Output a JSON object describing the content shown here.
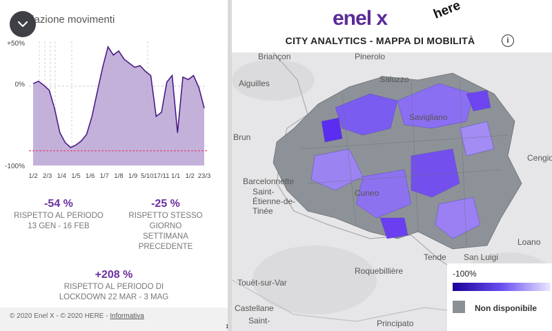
{
  "left_panel": {
    "title": "Variazione movimenti",
    "collapse_icon": "chevron-down-icon",
    "y_axis": [
      "+50%",
      "0%",
      "-100%"
    ],
    "x_axis": [
      "1/2",
      "2/3",
      "1/4",
      "1/5",
      "1/6",
      "1/7",
      "1/8",
      "1/9",
      "5/10",
      "17/11",
      "1/1",
      "1/2",
      "23/3"
    ],
    "stats": [
      {
        "value": "-54 %",
        "lines": [
          "RISPETTO AL PERIODO",
          "13 GEN - 16 FEB"
        ]
      },
      {
        "value": "-25 %",
        "lines": [
          "RISPETTO STESSO",
          "GIORNO",
          "SETTIMANA",
          "PRECEDENTE"
        ]
      },
      {
        "value": "+208 %",
        "lines": [
          "RISPETTO AL PERIODO DI",
          "LOCKDOWN 22 MAR - 3 MAG"
        ]
      }
    ],
    "footer": {
      "text": "© 2020 Enel X - © 2020 HERE - ",
      "link": "Informativa",
      "arrow": "›"
    }
  },
  "right_panel": {
    "brand": "enel x",
    "partner": "here",
    "title": "CITY ANALYTICS - MAPPA DI MOBILITÀ",
    "info_icon": "i",
    "map_labels": [
      "Briançon",
      "Pinerolo",
      "Aiguilles",
      "Barcelonnette",
      "Saluzzo",
      "Savigliano",
      "Cuneo",
      "Brun",
      "Saint-Étienne-de-Tinée",
      "Cengio",
      "Tende",
      "San Luigi",
      "Roquebillière",
      "Touët-sur-Var",
      "Loano",
      "Castellane",
      "Saint-",
      "Principato"
    ],
    "legend": {
      "top_label": "-100%",
      "nd_label": "Non disponibile"
    },
    "colors": {
      "accent": "#5a2a98",
      "unavailable": "#8b9096"
    }
  },
  "chart_data": {
    "type": "area",
    "title": "Variazione movimenti",
    "x_tick_labels": [
      "1/2",
      "2/3",
      "1/4",
      "1/5",
      "1/6",
      "1/7",
      "1/8",
      "1/9",
      "5/10",
      "17/11",
      "1/1",
      "1/2",
      "23/3"
    ],
    "y_tick_labels": [
      "+50%",
      "0%",
      "-100%"
    ],
    "ylim": [
      -100,
      50
    ],
    "series": [
      {
        "values": [
          0,
          3,
          -2,
          -8,
          -30,
          -60,
          -72,
          -78,
          -75,
          -70,
          -62,
          -40,
          -10,
          20,
          45,
          35,
          40,
          30,
          25,
          20,
          22,
          15,
          10,
          -40,
          -35,
          2,
          10,
          -60,
          8,
          5,
          10,
          -5,
          -30
        ]
      }
    ],
    "reference_lines": [
      {
        "y": -82,
        "style": "dashed",
        "color": "#e0487a"
      }
    ]
  }
}
